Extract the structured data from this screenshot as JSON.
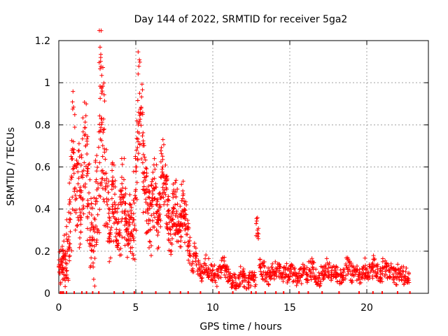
{
  "chart_data": {
    "type": "scatter",
    "title": "Day 144 of 2022, SRMTID for receiver 5ga2",
    "xlabel": "GPS time / hours",
    "ylabel": "SRMTID / TECUs",
    "xlim": [
      0,
      24
    ],
    "ylim": [
      0,
      1.2
    ],
    "x_ticks": [
      0,
      5,
      10,
      15,
      20
    ],
    "x_tick_labels": [
      "0",
      "5",
      "10",
      "15",
      "20"
    ],
    "y_ticks": [
      0,
      0.2,
      0.4,
      0.6,
      0.8,
      1.0,
      1.2
    ],
    "y_tick_labels": [
      "0",
      "0.2",
      "0.4",
      "0.6",
      "0.8",
      "1",
      "1.2"
    ],
    "grid": true,
    "marker": "plus",
    "color": "#ff0000",
    "series": [
      {
        "name": "SRMTID",
        "x": [
          0.05,
          0.15,
          0.25,
          0.35,
          0.45,
          0.55,
          0.65,
          0.75,
          0.85,
          0.95,
          1.05,
          1.15,
          1.25,
          1.35,
          1.45,
          1.55,
          1.65,
          1.75,
          1.85,
          1.95,
          2.05,
          2.15,
          2.25,
          2.35,
          2.45,
          2.55,
          2.65,
          2.72,
          2.78,
          2.85,
          2.95,
          3.05,
          3.15,
          3.25,
          3.35,
          3.45,
          3.55,
          3.65,
          3.75,
          3.85,
          3.95,
          4.05,
          4.15,
          4.25,
          4.35,
          4.45,
          4.55,
          4.65,
          4.75,
          4.85,
          4.95,
          5.05,
          5.15,
          5.25,
          5.35,
          5.45,
          5.55,
          5.65,
          5.75,
          5.85,
          5.95,
          6.05,
          6.15,
          6.25,
          6.35,
          6.45,
          6.55,
          6.65,
          6.75,
          6.85,
          6.95,
          7.05,
          7.15,
          7.25,
          7.35,
          7.45,
          7.55,
          7.65,
          7.75,
          7.85,
          7.95,
          8.05,
          8.15,
          8.25,
          8.35,
          8.5,
          8.7,
          8.9,
          9.1,
          9.3,
          9.5,
          9.7,
          9.9,
          10.1,
          10.3,
          10.5,
          10.7,
          10.9,
          11.1,
          11.3,
          11.5,
          11.7,
          11.9,
          12.1,
          12.3,
          12.5,
          12.7,
          12.9,
          13.1,
          13.3,
          13.5,
          13.7,
          13.9,
          14.1,
          14.3,
          14.5,
          14.7,
          14.9,
          15.1,
          15.3,
          15.5,
          15.7,
          15.9,
          16.1,
          16.3,
          16.5,
          16.7,
          16.9,
          17.1,
          17.3,
          17.5,
          17.7,
          17.9,
          18.1,
          18.3,
          18.5,
          18.7,
          18.9,
          19.1,
          19.3,
          19.5,
          19.7,
          19.9,
          20.1,
          20.3,
          20.5,
          20.7,
          20.9,
          21.1,
          21.3,
          21.5,
          21.7,
          21.9,
          22.1,
          22.3,
          22.5,
          22.7
        ],
        "y": [
          0.1,
          0.15,
          0.12,
          0.18,
          0.16,
          0.2,
          0.22,
          0.35,
          0.55,
          0.72,
          0.5,
          0.45,
          0.52,
          0.4,
          0.48,
          0.55,
          0.62,
          0.7,
          0.58,
          0.42,
          0.3,
          0.25,
          0.2,
          0.35,
          0.45,
          0.5,
          0.62,
          1.12,
          0.95,
          0.65,
          0.78,
          0.5,
          0.42,
          0.38,
          0.3,
          0.45,
          0.52,
          0.4,
          0.35,
          0.28,
          0.3,
          0.42,
          0.5,
          0.38,
          0.3,
          0.25,
          0.32,
          0.36,
          0.28,
          0.3,
          0.45,
          0.6,
          0.72,
          0.95,
          0.88,
          0.62,
          0.55,
          0.48,
          0.4,
          0.35,
          0.3,
          0.42,
          0.5,
          0.45,
          0.38,
          0.35,
          0.42,
          0.55,
          0.6,
          0.48,
          0.52,
          0.42,
          0.36,
          0.3,
          0.35,
          0.4,
          0.42,
          0.38,
          0.33,
          0.3,
          0.36,
          0.45,
          0.4,
          0.32,
          0.28,
          0.2,
          0.15,
          0.18,
          0.12,
          0.1,
          0.14,
          0.12,
          0.1,
          0.09,
          0.08,
          0.11,
          0.13,
          0.1,
          0.08,
          0.06,
          0.05,
          0.07,
          0.09,
          0.06,
          0.05,
          0.07,
          0.06,
          0.3,
          0.12,
          0.1,
          0.09,
          0.08,
          0.1,
          0.12,
          0.1,
          0.09,
          0.11,
          0.08,
          0.1,
          0.09,
          0.07,
          0.08,
          0.1,
          0.09,
          0.11,
          0.12,
          0.08,
          0.07,
          0.09,
          0.1,
          0.12,
          0.1,
          0.11,
          0.09,
          0.08,
          0.1,
          0.12,
          0.11,
          0.09,
          0.1,
          0.08,
          0.09,
          0.12,
          0.1,
          0.11,
          0.13,
          0.1,
          0.09,
          0.12,
          0.11,
          0.1,
          0.09,
          0.08,
          0.1,
          0.09,
          0.08,
          0.07
        ],
        "noise": [
          0.06,
          0.08,
          0.1,
          0.12,
          0.14,
          0.16,
          0.18,
          0.2,
          0.22,
          0.24,
          0.2,
          0.2,
          0.2,
          0.2,
          0.2,
          0.2,
          0.22,
          0.24,
          0.22,
          0.2,
          0.18,
          0.18,
          0.18,
          0.2,
          0.22,
          0.24,
          0.26,
          0.2,
          0.2,
          0.22,
          0.22,
          0.2,
          0.18,
          0.16,
          0.16,
          0.18,
          0.18,
          0.16,
          0.14,
          0.14,
          0.16,
          0.18,
          0.18,
          0.16,
          0.14,
          0.14,
          0.14,
          0.14,
          0.14,
          0.16,
          0.18,
          0.2,
          0.2,
          0.2,
          0.2,
          0.18,
          0.18,
          0.16,
          0.14,
          0.14,
          0.14,
          0.14,
          0.16,
          0.16,
          0.14,
          0.14,
          0.14,
          0.16,
          0.16,
          0.14,
          0.14,
          0.12,
          0.12,
          0.12,
          0.12,
          0.12,
          0.12,
          0.12,
          0.12,
          0.1,
          0.1,
          0.1,
          0.1,
          0.1,
          0.08,
          0.07,
          0.06,
          0.06,
          0.05,
          0.05,
          0.05,
          0.05,
          0.05,
          0.05,
          0.05,
          0.05,
          0.05,
          0.05,
          0.04,
          0.04,
          0.04,
          0.04,
          0.04,
          0.04,
          0.04,
          0.04,
          0.04,
          0.06,
          0.05,
          0.05,
          0.04,
          0.04,
          0.04,
          0.04,
          0.04,
          0.04,
          0.04,
          0.04,
          0.04,
          0.04,
          0.04,
          0.04,
          0.04,
          0.04,
          0.05,
          0.05,
          0.04,
          0.04,
          0.04,
          0.04,
          0.05,
          0.04,
          0.04,
          0.04,
          0.04,
          0.04,
          0.05,
          0.05,
          0.04,
          0.04,
          0.04,
          0.04,
          0.05,
          0.04,
          0.04,
          0.05,
          0.04,
          0.04,
          0.05,
          0.04,
          0.04,
          0.04,
          0.04,
          0.04,
          0.04,
          0.04,
          0.03
        ]
      }
    ],
    "zero_marks_x": [
      0.1,
      0.2,
      0.3,
      0.5,
      1.0,
      1.5,
      1.8,
      2.2,
      2.6,
      3.6,
      4.2,
      4.9,
      5.4,
      6.3,
      7.2,
      7.9,
      8.4,
      9.2,
      10.4,
      11.3,
      12.5,
      12.8,
      13.4,
      14.1,
      14.6,
      15.6,
      16.2,
      17.1,
      18.2,
      19.5,
      20.4,
      21.0,
      22.0,
      22.8
    ]
  }
}
